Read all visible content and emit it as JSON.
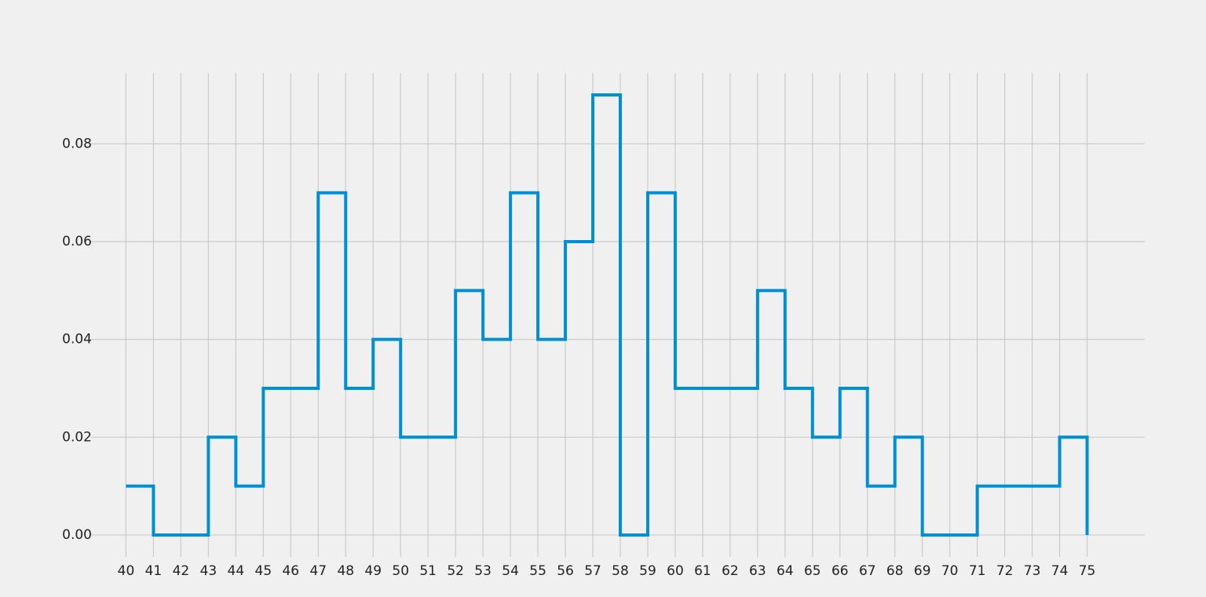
{
  "chart_data": {
    "type": "line",
    "step": "post",
    "x": [
      40,
      41,
      42,
      43,
      44,
      45,
      46,
      47,
      48,
      49,
      50,
      51,
      52,
      53,
      54,
      55,
      56,
      57,
      58,
      59,
      60,
      61,
      62,
      63,
      64,
      65,
      66,
      67,
      68,
      69,
      70,
      71,
      72,
      73,
      74,
      75
    ],
    "series": [
      {
        "values": [
          0.01,
          0.0,
          0.0,
          0.02,
          0.01,
          0.03,
          0.03,
          0.07,
          0.03,
          0.04,
          0.02,
          0.02,
          0.05,
          0.04,
          0.07,
          0.04,
          0.06,
          0.09,
          0.0,
          0.07,
          0.03,
          0.03,
          0.03,
          0.05,
          0.03,
          0.02,
          0.03,
          0.01,
          0.02,
          0.0,
          0.0,
          0.01,
          0.01,
          0.01,
          0.02,
          0.0
        ],
        "color": "#008fd5"
      }
    ],
    "x_ticks": [
      "40",
      "41",
      "42",
      "43",
      "44",
      "45",
      "46",
      "47",
      "48",
      "49",
      "50",
      "51",
      "52",
      "53",
      "54",
      "55",
      "56",
      "57",
      "58",
      "59",
      "60",
      "61",
      "62",
      "63",
      "64",
      "65",
      "66",
      "67",
      "68",
      "69",
      "70",
      "71",
      "72",
      "73",
      "74",
      "75"
    ],
    "y_ticks": [
      "0.00",
      "0.02",
      "0.04",
      "0.06",
      "0.08"
    ],
    "y_tick_values": [
      0.0,
      0.02,
      0.04,
      0.06,
      0.08
    ],
    "xlim": [
      38.7,
      77.1
    ],
    "ylim": [
      -0.0045,
      0.0945
    ],
    "title": "",
    "xlabel": "",
    "ylabel": "",
    "grid": true,
    "grid_color": "#cbcbcb",
    "background": "#f0f0f0"
  }
}
